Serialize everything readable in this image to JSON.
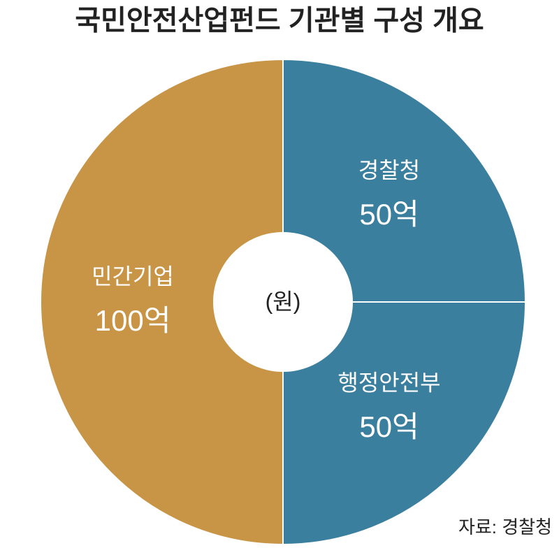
{
  "chart_data": {
    "type": "pie",
    "title": "국민안전산업펀드 기관별 구성 개요",
    "categories": [
      "경찰청",
      "행정안전부",
      "민간기업"
    ],
    "values": [
      50,
      50,
      100
    ],
    "value_labels": [
      "50억",
      "50억",
      "100억"
    ],
    "colors": [
      "#3b7f9e",
      "#3b7f9e",
      "#c89546"
    ],
    "center_label": "(원)",
    "source": "자료: 경찰청"
  }
}
